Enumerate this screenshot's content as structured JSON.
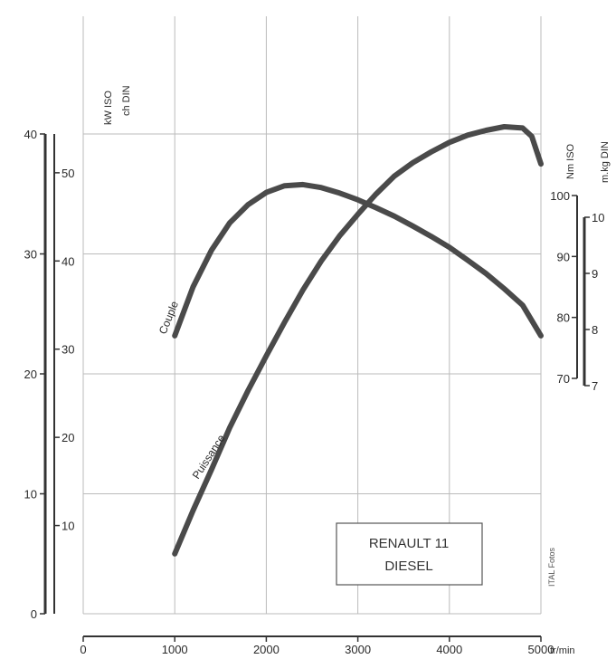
{
  "chart_data": {
    "type": "line",
    "title": [
      "RENAULT 11",
      "DIESEL"
    ],
    "credit": "ITAL Fotos",
    "x": {
      "unit": "tr/min",
      "ticks": [
        0,
        1000,
        2000,
        3000,
        4000,
        5000
      ],
      "range": [
        0,
        5000
      ]
    },
    "y_left_kw": {
      "unit": "kW ISO",
      "ticks": [
        0,
        10,
        20,
        30,
        40
      ],
      "range": [
        0,
        40
      ]
    },
    "y_left_ch": {
      "unit": "ch DIN",
      "ticks": [
        10,
        20,
        30,
        40,
        50
      ],
      "range": [
        0,
        54.4
      ]
    },
    "y_right_nm": {
      "unit": "Nm ISO",
      "ticks": [
        70,
        80,
        90,
        100
      ],
      "range": [
        70,
        100
      ]
    },
    "y_right_mkg": {
      "unit": "m.kg DIN",
      "ticks": [
        7,
        8,
        9,
        10
      ],
      "range": [
        7,
        10
      ]
    },
    "series": [
      {
        "name": "Couple",
        "axis": "y_right_nm",
        "points": [
          [
            1000,
            77
          ],
          [
            1200,
            85
          ],
          [
            1400,
            91
          ],
          [
            1600,
            95.5
          ],
          [
            1800,
            98.5
          ],
          [
            2000,
            100.5
          ],
          [
            2200,
            101.6
          ],
          [
            2400,
            101.8
          ],
          [
            2600,
            101.3
          ],
          [
            2800,
            100.4
          ],
          [
            3000,
            99.3
          ],
          [
            3200,
            98
          ],
          [
            3400,
            96.6
          ],
          [
            3600,
            95
          ],
          [
            3800,
            93.3
          ],
          [
            4000,
            91.5
          ],
          [
            4200,
            89.4
          ],
          [
            4400,
            87.2
          ],
          [
            4600,
            84.7
          ],
          [
            4800,
            82
          ],
          [
            5000,
            77
          ]
        ]
      },
      {
        "name": "Puissance",
        "axis": "y_left_kw",
        "points": [
          [
            1000,
            5
          ],
          [
            1200,
            8.6
          ],
          [
            1400,
            12
          ],
          [
            1600,
            15.5
          ],
          [
            1800,
            18.6
          ],
          [
            2000,
            21.5
          ],
          [
            2200,
            24.3
          ],
          [
            2400,
            27
          ],
          [
            2600,
            29.4
          ],
          [
            2800,
            31.5
          ],
          [
            3000,
            33.3
          ],
          [
            3200,
            35
          ],
          [
            3400,
            36.5
          ],
          [
            3600,
            37.6
          ],
          [
            3800,
            38.5
          ],
          [
            4000,
            39.3
          ],
          [
            4200,
            39.9
          ],
          [
            4400,
            40.3
          ],
          [
            4600,
            40.6
          ],
          [
            4800,
            40.5
          ],
          [
            4900,
            39.8
          ],
          [
            5000,
            37.5
          ]
        ]
      }
    ],
    "grid": true
  }
}
